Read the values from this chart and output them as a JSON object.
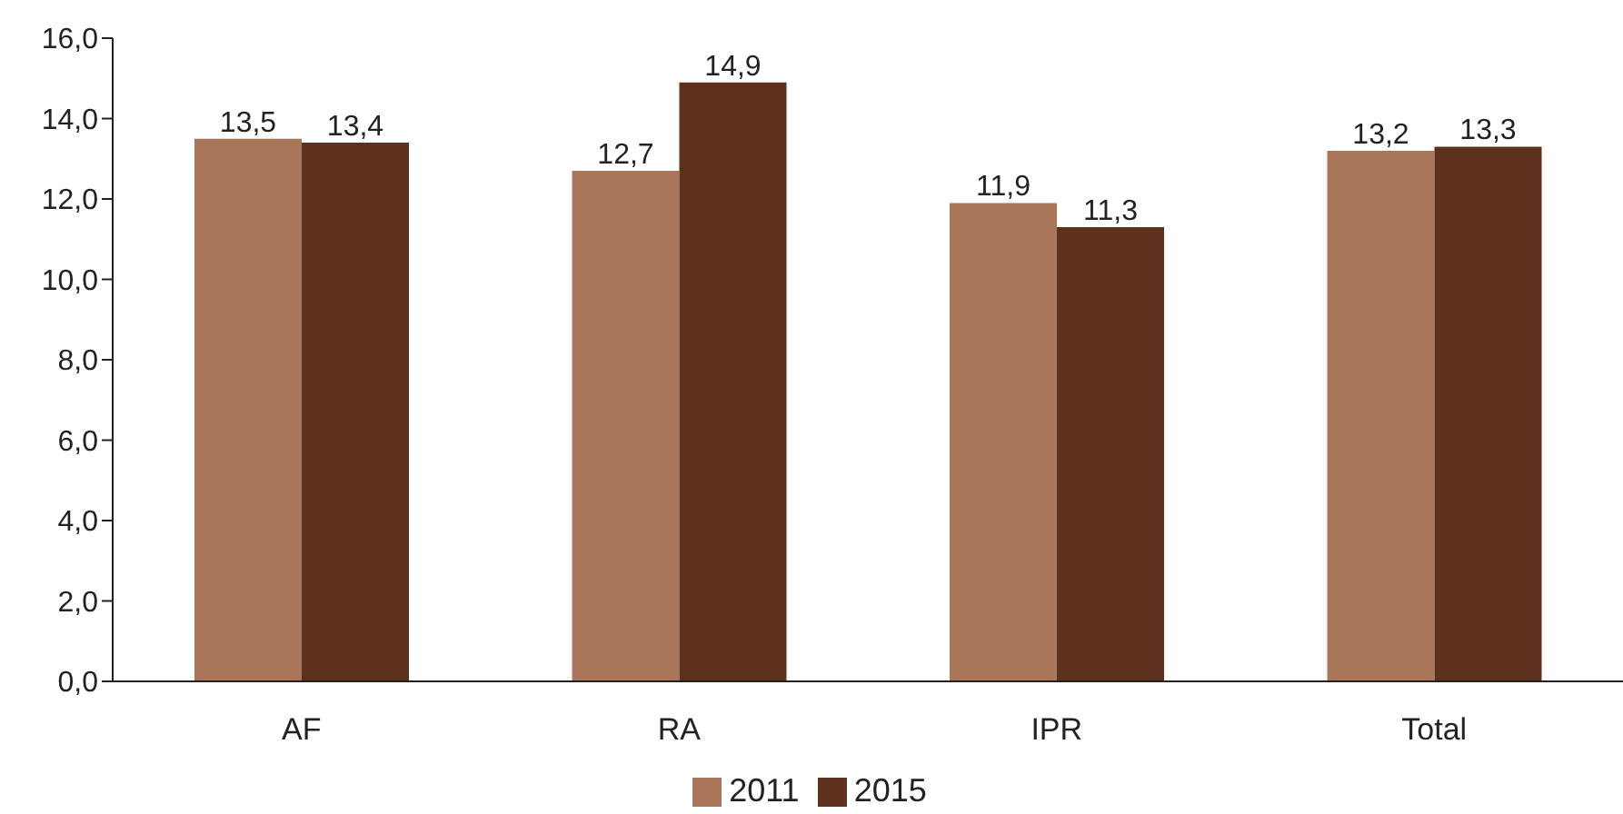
{
  "chart_data": {
    "type": "bar",
    "categories": [
      "AF",
      "RA",
      "IPR",
      "Total"
    ],
    "series": [
      {
        "name": "2011",
        "color": "#a9765a",
        "values": [
          13.5,
          12.7,
          11.9,
          13.2
        ],
        "value_labels": [
          "13,5",
          "12,7",
          "11,9",
          "13,2"
        ]
      },
      {
        "name": "2015",
        "color": "#5e311d",
        "values": [
          13.4,
          14.9,
          11.3,
          13.3
        ],
        "value_labels": [
          "13,4",
          "14,9",
          "11,3",
          "13,3"
        ]
      }
    ],
    "ylim": [
      0,
      16
    ],
    "yticks": [
      {
        "value": 0,
        "label": "0,0"
      },
      {
        "value": 2,
        "label": "2,0"
      },
      {
        "value": 4,
        "label": "4,0"
      },
      {
        "value": 6,
        "label": "6,0"
      },
      {
        "value": 8,
        "label": "8,0"
      },
      {
        "value": 10,
        "label": "10,0"
      },
      {
        "value": 12,
        "label": "12,0"
      },
      {
        "value": 14,
        "label": "14,0"
      },
      {
        "value": 16,
        "label": "16,0"
      }
    ],
    "grid": false,
    "legend": "bottom"
  }
}
